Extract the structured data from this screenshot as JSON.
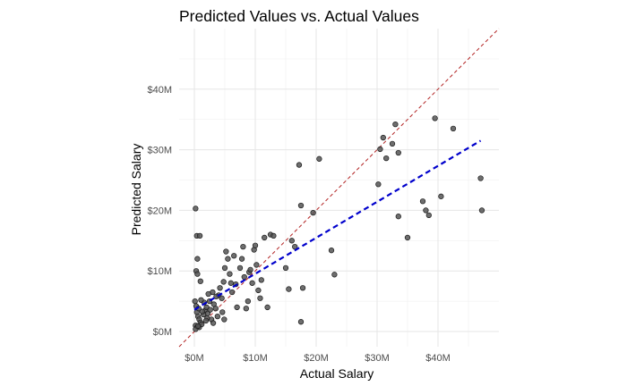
{
  "chart_data": {
    "type": "scatter",
    "title": "Predicted Values vs. Actual Values",
    "xlabel": "Actual Salary",
    "ylabel": "Predicted Salary",
    "xlim": [
      -2.5,
      50
    ],
    "ylim": [
      -2.5,
      50
    ],
    "x_ticks": [
      0,
      10,
      20,
      30,
      40
    ],
    "x_tick_labels": [
      "$0M",
      "$10M",
      "$20M",
      "$30M",
      "$40M"
    ],
    "y_ticks": [
      0,
      10,
      20,
      30,
      40
    ],
    "y_tick_labels": [
      "$0M",
      "$10M",
      "$20M",
      "$30M",
      "$40M"
    ],
    "grid": true,
    "reference_line": {
      "style": "dashed",
      "color": "#b22222",
      "slope": 1,
      "intercept": 0
    },
    "trend_line": {
      "style": "dashed",
      "color": "#0000cc",
      "x": [
        0,
        47
      ],
      "y": [
        3.6,
        31.5
      ]
    },
    "point_color": "#555555",
    "points": [
      [
        0.2,
        20.3
      ],
      [
        0.4,
        15.8
      ],
      [
        0.9,
        15.8
      ],
      [
        0.3,
        10.0
      ],
      [
        0.5,
        12.0
      ],
      [
        0.5,
        9.5
      ],
      [
        1.0,
        8.3
      ],
      [
        0.1,
        5.0
      ],
      [
        0.3,
        4.2
      ],
      [
        0.4,
        3.2
      ],
      [
        0.6,
        2.5
      ],
      [
        0.8,
        2.0
      ],
      [
        1.0,
        1.5
      ],
      [
        0.2,
        1.0
      ],
      [
        0.5,
        0.8
      ],
      [
        0.8,
        0.7
      ],
      [
        1.2,
        1.2
      ],
      [
        1.5,
        2.8
      ],
      [
        1.8,
        3.5
      ],
      [
        2.0,
        4.0
      ],
      [
        2.2,
        3.0
      ],
      [
        2.5,
        5.0
      ],
      [
        2.8,
        2.0
      ],
      [
        3.0,
        6.5
      ],
      [
        3.2,
        4.5
      ],
      [
        3.5,
        3.8
      ],
      [
        3.8,
        2.5
      ],
      [
        4.0,
        6.0
      ],
      [
        4.2,
        7.2
      ],
      [
        4.5,
        5.5
      ],
      [
        1.3,
        3.3
      ],
      [
        1.6,
        4.8
      ],
      [
        2.1,
        2.2
      ],
      [
        2.6,
        3.6
      ],
      [
        1.1,
        5.2
      ],
      [
        0.7,
        3.8
      ],
      [
        1.9,
        1.8
      ],
      [
        2.3,
        6.2
      ],
      [
        3.1,
        1.4
      ],
      [
        3.6,
        5.8
      ],
      [
        4.6,
        3.2
      ],
      [
        4.8,
        8.2
      ],
      [
        5.2,
        13.2
      ],
      [
        5.5,
        12.0
      ],
      [
        5.8,
        9.5
      ],
      [
        6.0,
        8.0
      ],
      [
        6.2,
        6.5
      ],
      [
        5.0,
        10.5
      ],
      [
        4.9,
        2.0
      ],
      [
        6.5,
        12.5
      ],
      [
        6.8,
        7.8
      ],
      [
        7.0,
        4.0
      ],
      [
        7.5,
        10.5
      ],
      [
        7.8,
        12.0
      ],
      [
        8.0,
        14.0
      ],
      [
        8.2,
        9.0
      ],
      [
        8.5,
        3.8
      ],
      [
        8.8,
        5.0
      ],
      [
        9.0,
        9.8
      ],
      [
        9.2,
        10.2
      ],
      [
        9.5,
        8.0
      ],
      [
        9.8,
        13.5
      ],
      [
        10.0,
        14.2
      ],
      [
        10.2,
        11.0
      ],
      [
        10.5,
        6.8
      ],
      [
        10.8,
        5.5
      ],
      [
        11.0,
        8.5
      ],
      [
        11.5,
        15.5
      ],
      [
        12.0,
        4.0
      ],
      [
        12.5,
        16.0
      ],
      [
        13.0,
        15.8
      ],
      [
        15.0,
        10.5
      ],
      [
        15.5,
        7.0
      ],
      [
        16.0,
        15.0
      ],
      [
        16.5,
        14.0
      ],
      [
        17.2,
        27.5
      ],
      [
        17.5,
        20.8
      ],
      [
        17.8,
        7.2
      ],
      [
        17.5,
        1.6
      ],
      [
        19.5,
        19.6
      ],
      [
        20.5,
        28.5
      ],
      [
        22.5,
        13.4
      ],
      [
        23.0,
        9.4
      ],
      [
        30.2,
        24.3
      ],
      [
        30.5,
        30.1
      ],
      [
        31.0,
        32.0
      ],
      [
        31.5,
        28.6
      ],
      [
        32.5,
        31.0
      ],
      [
        33.0,
        34.2
      ],
      [
        33.5,
        29.5
      ],
      [
        33.5,
        19.0
      ],
      [
        35.0,
        15.5
      ],
      [
        37.5,
        21.5
      ],
      [
        38.0,
        20.0
      ],
      [
        38.5,
        19.2
      ],
      [
        39.5,
        35.2
      ],
      [
        40.5,
        22.3
      ],
      [
        42.5,
        33.5
      ],
      [
        47.0,
        25.3
      ],
      [
        47.2,
        20.0
      ],
      [
        0.2,
        0.4
      ],
      [
        0.6,
        0.9
      ]
    ]
  }
}
